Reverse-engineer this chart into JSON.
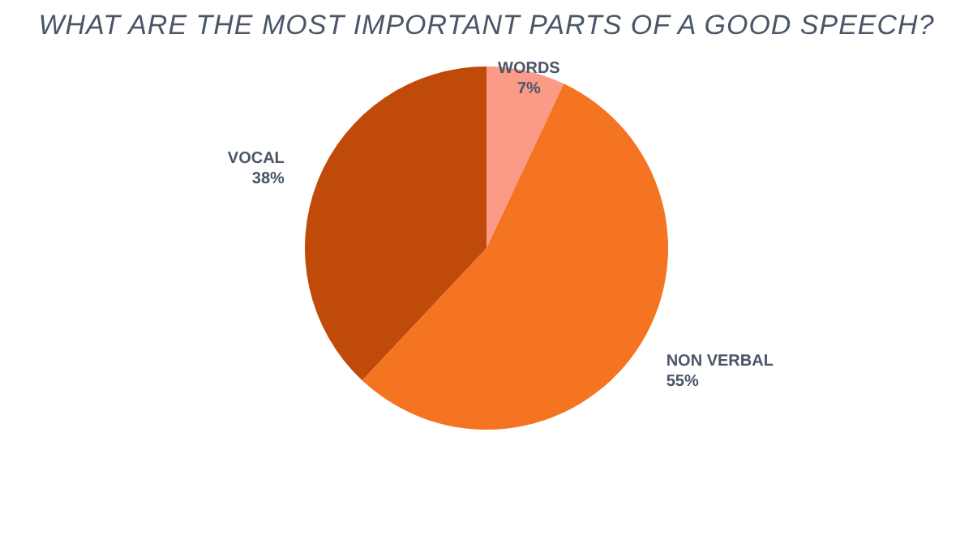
{
  "chart_data": {
    "type": "pie",
    "title": "WHAT ARE THE MOST IMPORTANT PARTS OF A GOOD SPEECH?",
    "categories": [
      "WORDS",
      "NON VERBAL",
      "VOCAL"
    ],
    "values": [
      7,
      55,
      38
    ],
    "value_labels": [
      "7%",
      "55%",
      "38%"
    ],
    "colors": [
      "#fb9a86",
      "#f47421",
      "#c04a0a"
    ],
    "legend": false
  }
}
